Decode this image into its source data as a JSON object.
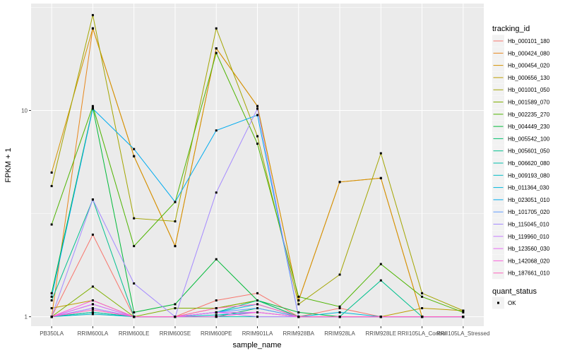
{
  "chart_data": {
    "type": "line",
    "title": "",
    "xlabel": "sample_name",
    "ylabel": "FPKM + 1",
    "y_scale": "log10",
    "ylim": [
      0.9,
      33
    ],
    "y_ticks": [
      1,
      10
    ],
    "y_tick_labels": [
      "1",
      "10"
    ],
    "grid": true,
    "legend_position": "right",
    "categories": [
      "PB350LA",
      "RRIM600LA",
      "RRIM600LE",
      "RRIM600SE",
      "RRIM600PE",
      "RRIM901LA",
      "RRIM928BA",
      "RRIM928LA",
      "RRIM928LE",
      "RRII105LA_Control",
      "RRII105LA_Stressed"
    ],
    "color_legend_title": "tracking_id",
    "shape_legend_title": "quant_status",
    "shape_legend_items": [
      {
        "label": "OK"
      }
    ],
    "series": [
      {
        "name": "Hb_000101_180",
        "color": "#F8766D",
        "values": [
          1.0,
          2.5,
          1.0,
          1.0,
          1.2,
          1.3,
          1.0,
          1.1,
          1.0,
          1.0,
          1.0
        ]
      },
      {
        "name": "Hb_000424_080",
        "color": "#E7861B",
        "values": [
          1.0,
          25.0,
          6.0,
          2.2,
          20.0,
          10.5,
          1.2,
          4.5,
          4.7,
          1.0,
          1.0
        ]
      },
      {
        "name": "Hb_000454_020",
        "color": "#D39200",
        "values": [
          5.0,
          25.0,
          6.0,
          2.2,
          20.0,
          10.5,
          1.2,
          4.5,
          4.7,
          1.0,
          1.0
        ]
      },
      {
        "name": "Hb_000656_130",
        "color": "#BD9D00",
        "values": [
          1.1,
          1.2,
          1.0,
          1.0,
          1.1,
          1.2,
          1.0,
          1.0,
          1.0,
          1.1,
          1.07
        ]
      },
      {
        "name": "Hb_001001_050",
        "color": "#A3A500",
        "values": [
          4.3,
          29.0,
          3.0,
          2.9,
          25.0,
          7.5,
          1.15,
          1.6,
          6.2,
          1.3,
          1.07
        ]
      },
      {
        "name": "Hb_001589_070",
        "color": "#7FAF00",
        "values": [
          1.0,
          1.4,
          1.0,
          1.1,
          1.1,
          1.2,
          1.0,
          1.0,
          1.0,
          1.0,
          1.0
        ]
      },
      {
        "name": "Hb_002235_270",
        "color": "#4EB400",
        "values": [
          2.8,
          10.5,
          2.2,
          3.6,
          19.0,
          6.9,
          1.25,
          1.12,
          1.8,
          1.25,
          1.05
        ]
      },
      {
        "name": "Hb_004449_230",
        "color": "#00BA38",
        "values": [
          1.3,
          10.3,
          1.05,
          1.15,
          1.9,
          1.2,
          1.05,
          1.0,
          1.0,
          1.0,
          1.0
        ]
      },
      {
        "name": "Hb_005542_100",
        "color": "#00BE6C",
        "values": [
          1.0,
          1.05,
          1.0,
          1.0,
          1.0,
          1.1,
          1.0,
          1.0,
          1.0,
          1.0,
          1.0
        ]
      },
      {
        "name": "Hb_005601_050",
        "color": "#00C08E",
        "values": [
          1.2,
          3.7,
          1.0,
          1.0,
          1.05,
          1.2,
          1.0,
          1.0,
          1.5,
          1.0,
          1.0
        ]
      },
      {
        "name": "Hb_006620_080",
        "color": "#00BFAC",
        "values": [
          1.0,
          1.05,
          1.0,
          1.0,
          1.0,
          1.0,
          1.0,
          1.0,
          1.0,
          1.0,
          1.0
        ]
      },
      {
        "name": "Hb_009193_080",
        "color": "#00BCC6",
        "values": [
          1.0,
          1.03,
          1.0,
          1.0,
          1.02,
          1.05,
          1.0,
          1.0,
          1.0,
          1.0,
          1.0
        ]
      },
      {
        "name": "Hb_011364_030",
        "color": "#00B5DC",
        "values": [
          1.0,
          1.1,
          1.0,
          1.0,
          1.05,
          1.15,
          1.0,
          1.05,
          1.0,
          1.0,
          1.0
        ]
      },
      {
        "name": "Hb_023051_010",
        "color": "#00ABEF",
        "values": [
          1.25,
          10.2,
          6.5,
          3.6,
          8.0,
          9.5,
          1.0,
          1.0,
          1.0,
          1.0,
          1.0
        ]
      },
      {
        "name": "Hb_101705_020",
        "color": "#619CFF",
        "values": [
          1.0,
          1.15,
          1.0,
          1.0,
          1.05,
          1.1,
          1.0,
          1.0,
          1.0,
          1.0,
          1.0
        ]
      },
      {
        "name": "Hb_115045_010",
        "color": "#A58AFF",
        "values": [
          1.0,
          3.7,
          1.45,
          1.0,
          4.0,
          10.2,
          1.0,
          1.0,
          1.0,
          1.0,
          1.0
        ]
      },
      {
        "name": "Hb_119960_010",
        "color": "#C77CFF",
        "values": [
          1.0,
          1.1,
          1.0,
          1.0,
          1.05,
          1.0,
          1.0,
          1.0,
          1.0,
          1.0,
          1.0
        ]
      },
      {
        "name": "Hb_123560_030",
        "color": "#E76BF3",
        "values": [
          1.0,
          1.15,
          1.0,
          1.0,
          1.05,
          1.05,
          1.0,
          1.0,
          1.0,
          1.0,
          1.0
        ]
      },
      {
        "name": "Hb_142068_020",
        "color": "#FA62DB",
        "values": [
          1.0,
          1.2,
          1.0,
          1.0,
          1.0,
          1.05,
          1.0,
          1.0,
          1.0,
          1.0,
          1.0
        ]
      },
      {
        "name": "Hb_187661_010",
        "color": "#FF62BC",
        "values": [
          1.0,
          1.08,
          1.0,
          1.0,
          1.1,
          1.15,
          1.0,
          1.0,
          1.0,
          1.0,
          1.0
        ]
      }
    ]
  }
}
